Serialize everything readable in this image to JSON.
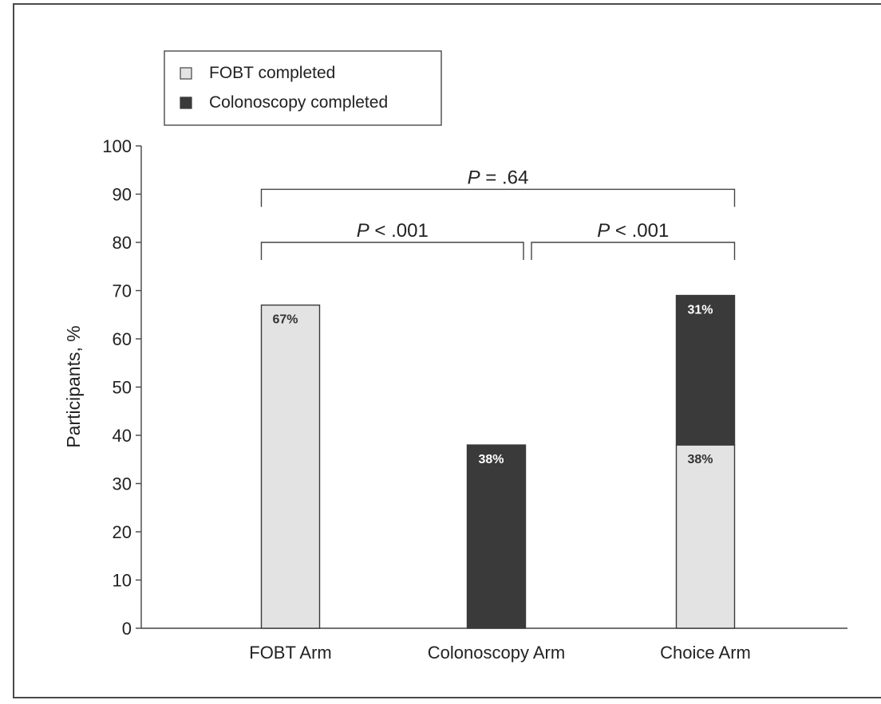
{
  "chart_data": {
    "type": "bar",
    "stacked": true,
    "categories": [
      "FOBT Arm",
      "Colonoscopy Arm",
      "Choice Arm"
    ],
    "series": [
      {
        "name": "FOBT completed",
        "color": "#e3e3e3",
        "values": [
          67,
          0,
          38
        ],
        "labels": [
          "67%",
          "",
          "38%"
        ]
      },
      {
        "name": "Colonoscopy completed",
        "color": "#3a3a3a",
        "values": [
          0,
          38,
          31
        ],
        "labels": [
          "",
          "38%",
          "31%"
        ]
      }
    ],
    "ylabel": "Participants, %",
    "xlabel": "",
    "ylim": [
      0,
      100
    ],
    "yticks": [
      0,
      10,
      20,
      30,
      40,
      50,
      60,
      70,
      80,
      90,
      100
    ],
    "grid": false,
    "legend_position": "top-left",
    "annotations": [
      {
        "from": "FOBT Arm",
        "to": "Choice Arm",
        "p": "P",
        "op": " = ",
        "value": ".64",
        "bracket_y": 91
      },
      {
        "from": "FOBT Arm",
        "to": "Colonoscopy Arm",
        "p": "P",
        "op": " < ",
        "value": ".001",
        "bracket_y": 80
      },
      {
        "from": "Colonoscopy Arm",
        "to": "Choice Arm",
        "p": "P",
        "op": " < ",
        "value": ".001",
        "bracket_y": 80
      }
    ]
  }
}
